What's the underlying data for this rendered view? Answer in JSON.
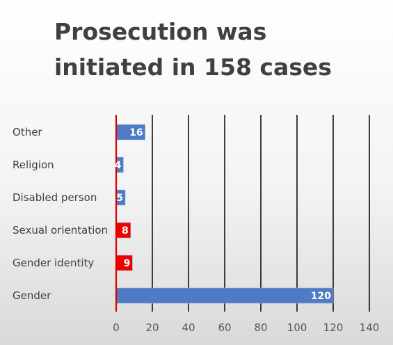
{
  "chart_data": {
    "type": "bar",
    "orientation": "horizontal",
    "title": "Prosecution was initiated in 158 cases",
    "categories": [
      "Other",
      "Religion",
      "Disabled person",
      "Sexual orientation",
      "Gender identity",
      "Gender"
    ],
    "values": [
      16,
      4,
      5,
      8,
      9,
      120
    ],
    "bar_colors": [
      "#4f7bc4",
      "#4f7bc4",
      "#4f7bc4",
      "#ee0000",
      "#ee0000",
      "#4f7bc4"
    ],
    "xlim": [
      0,
      140
    ],
    "xticks": [
      0,
      20,
      40,
      60,
      80,
      100,
      120,
      140
    ],
    "xlabel": "",
    "ylabel": "",
    "grid": "vertical",
    "legend": "none"
  },
  "colors": {
    "primary_bar": "#4f7bc4",
    "highlight_bar": "#ee0000",
    "zero_line": "#e00000",
    "gridline": "#111111"
  }
}
